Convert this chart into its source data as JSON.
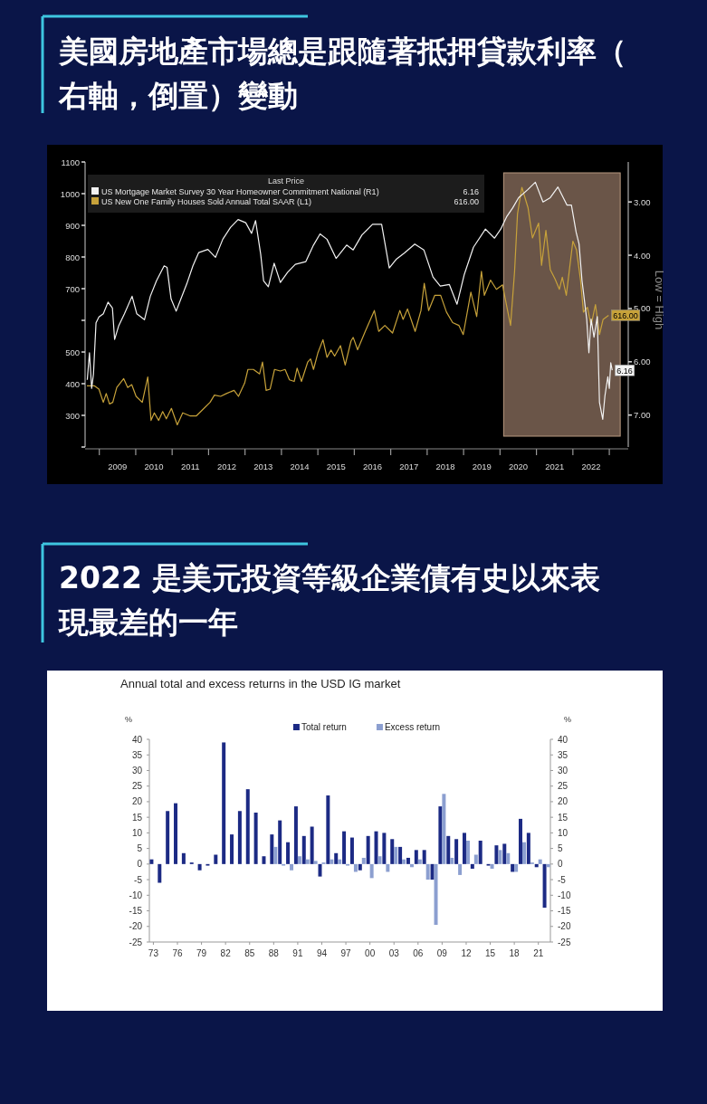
{
  "chart_data": [
    {
      "type": "line",
      "title": "美國房地產市場總是跟隨著抵押貸款利率（右軸，倒置）變動",
      "legend_title": "Last Price",
      "annotations": [
        "6.16",
        "616.00"
      ],
      "y2label": "Low = High",
      "legend": "top left",
      "xlim": [
        2008.61,
        2023.52
      ],
      "xticks": [
        {
          "value": 2009,
          "label": null
        },
        {
          "value": 2009.5,
          "label": "2009"
        },
        {
          "value": 2010,
          "label": null
        },
        {
          "value": 2010.5,
          "label": "2010"
        },
        {
          "value": 2011,
          "label": null
        },
        {
          "value": 2011.5,
          "label": "2011"
        },
        {
          "value": 2012,
          "label": null
        },
        {
          "value": 2012.5,
          "label": "2012"
        },
        {
          "value": 2013,
          "label": null
        },
        {
          "value": 2013.5,
          "label": "2013"
        },
        {
          "value": 2014,
          "label": null
        },
        {
          "value": 2014.5,
          "label": "2014"
        },
        {
          "value": 2015,
          "label": null
        },
        {
          "value": 2015.5,
          "label": "2015"
        },
        {
          "value": 2016,
          "label": null
        },
        {
          "value": 2016.5,
          "label": "2016"
        },
        {
          "value": 2017,
          "label": null
        },
        {
          "value": 2017.5,
          "label": "2017"
        },
        {
          "value": 2018,
          "label": null
        },
        {
          "value": 2018.5,
          "label": "2018"
        },
        {
          "value": 2019,
          "label": null
        },
        {
          "value": 2019.5,
          "label": "2019"
        },
        {
          "value": 2020,
          "label": null
        },
        {
          "value": 2020.5,
          "label": "2020"
        },
        {
          "value": 2021,
          "label": null
        },
        {
          "value": 2021.5,
          "label": "2021"
        },
        {
          "value": 2022,
          "label": null
        },
        {
          "value": 2022.5,
          "label": "2022"
        },
        {
          "value": 2023,
          "label": null
        }
      ],
      "ylim": [
        200,
        1100
      ],
      "yticks": [
        {
          "value": 200,
          "label": null
        },
        300,
        400,
        500,
        {
          "value": 600,
          "label": null
        },
        700,
        800,
        900,
        1000,
        1100
      ],
      "y2lim": [
        7.6,
        2.25
      ],
      "y2ticks": [
        {
          "value": 3,
          "label": "3.00"
        },
        {
          "value": 4,
          "label": "4.00"
        },
        {
          "value": 5,
          "label": "5.00"
        },
        {
          "value": 6,
          "label": "6.00"
        },
        {
          "value": 7,
          "label": "7.00"
        }
      ],
      "bands": [
        {
          "axis": "x",
          "from": 2020.1,
          "to": 2023.3,
          "color": "#6a5548"
        }
      ],
      "series": [
        {
          "name": "US Mortgage Market Survey 30 Year Homeowner Commitment National (R1)",
          "color": "#f2f2f2",
          "axis": "y2",
          "x": [
            2008.67,
            2008.73,
            2008.79,
            2008.84,
            2008.91,
            2008.99,
            2009.11,
            2009.24,
            2009.36,
            2009.42,
            2009.53,
            2009.69,
            2009.9,
            2010.03,
            2010.24,
            2010.4,
            2010.57,
            2010.78,
            2010.86,
            2010.97,
            2011.11,
            2011.24,
            2011.4,
            2011.57,
            2011.73,
            2011.98,
            2012.19,
            2012.39,
            2012.6,
            2012.81,
            2013.02,
            2013.18,
            2013.29,
            2013.43,
            2013.51,
            2013.64,
            2013.8,
            2013.97,
            2014.17,
            2014.38,
            2014.67,
            2014.88,
            2015.06,
            2015.25,
            2015.5,
            2015.79,
            2015.97,
            2016.21,
            2016.5,
            2016.75,
            2016.96,
            2017.16,
            2017.37,
            2017.66,
            2017.91,
            2018.16,
            2018.36,
            2018.61,
            2018.82,
            2019.02,
            2019.27,
            2019.6,
            2019.85,
            2020.02,
            2020.18,
            2020.35,
            2020.51,
            2020.76,
            2020.97,
            2021.18,
            2021.38,
            2021.59,
            2021.84,
            2021.96,
            2022.09,
            2022.17,
            2022.25,
            2022.38,
            2022.44,
            2022.5,
            2022.58,
            2022.67,
            2022.73,
            2022.82,
            2022.88,
            2022.96,
            2023.0,
            2023.04,
            2023.08
          ],
          "values": [
            6.34,
            5.83,
            6.5,
            6.23,
            5.27,
            5.16,
            5.1,
            4.88,
            4.99,
            5.58,
            5.33,
            5.1,
            4.77,
            5.1,
            5.21,
            4.77,
            4.48,
            4.2,
            4.23,
            4.82,
            5.05,
            4.82,
            4.54,
            4.2,
            3.95,
            3.89,
            4.04,
            3.7,
            3.48,
            3.33,
            3.39,
            3.59,
            3.35,
            3.98,
            4.48,
            4.59,
            4.15,
            4.51,
            4.32,
            4.17,
            4.12,
            3.81,
            3.6,
            3.7,
            4.06,
            3.81,
            3.9,
            3.62,
            3.42,
            3.42,
            4.24,
            4.07,
            3.96,
            3.79,
            3.9,
            4.41,
            4.58,
            4.55,
            4.92,
            4.36,
            3.85,
            3.51,
            3.68,
            3.51,
            3.28,
            3.11,
            2.92,
            2.77,
            2.63,
            3.0,
            2.92,
            2.72,
            3.06,
            3.06,
            3.57,
            3.79,
            4.47,
            5.2,
            5.83,
            5.2,
            5.54,
            5.15,
            6.76,
            7.08,
            6.64,
            6.28,
            6.5,
            6.02,
            6.16
          ],
          "value_labels": [
            null,
            null,
            null,
            null,
            null,
            null,
            null,
            null,
            null,
            null,
            null,
            null,
            null,
            null,
            null,
            null,
            null,
            null,
            null,
            null,
            null,
            null,
            null,
            null,
            null,
            null,
            null,
            null,
            null,
            null,
            null,
            null,
            null,
            null,
            null,
            null,
            null,
            null,
            null,
            null,
            null,
            null,
            null,
            null,
            null,
            null,
            null,
            null,
            null,
            null,
            null,
            null,
            null,
            null,
            null,
            null,
            null,
            null,
            null,
            null,
            null,
            null,
            null,
            null,
            null,
            null,
            null,
            null,
            null,
            null,
            null,
            null,
            null,
            null,
            null,
            null,
            null,
            null,
            null,
            null,
            null,
            null,
            null,
            null,
            null,
            null,
            null,
            null,
            "6.16"
          ]
        },
        {
          "name": "US New One Family Houses Sold Annual Total SAAR  (L1)",
          "color": "#c7a23a",
          "x": [
            2008.66,
            2008.87,
            2008.99,
            2009.11,
            2009.19,
            2009.28,
            2009.37,
            2009.48,
            2009.67,
            2009.78,
            2009.89,
            2010.01,
            2010.18,
            2010.33,
            2010.42,
            2010.51,
            2010.63,
            2010.74,
            2010.84,
            2010.98,
            2011.14,
            2011.29,
            2011.5,
            2011.66,
            2011.83,
            2012.04,
            2012.16,
            2012.33,
            2012.49,
            2012.7,
            2012.82,
            2012.99,
            2013.08,
            2013.23,
            2013.4,
            2013.48,
            2013.58,
            2013.69,
            2013.81,
            2013.97,
            2014.1,
            2014.22,
            2014.35,
            2014.43,
            2014.55,
            2014.72,
            2014.8,
            2014.88,
            2015.0,
            2015.14,
            2015.25,
            2015.36,
            2015.46,
            2015.62,
            2015.75,
            2015.91,
            2015.97,
            2016.09,
            2016.3,
            2016.55,
            2016.67,
            2016.84,
            2017.05,
            2017.25,
            2017.34,
            2017.46,
            2017.67,
            2017.83,
            2017.92,
            2018.04,
            2018.21,
            2018.37,
            2018.53,
            2018.7,
            2018.87,
            2018.99,
            2019.2,
            2019.36,
            2019.49,
            2019.57,
            2019.74,
            2019.9,
            2020.07,
            2020.19,
            2020.29,
            2020.4,
            2020.48,
            2020.6,
            2020.77,
            2020.89,
            2021.06,
            2021.14,
            2021.26,
            2021.38,
            2021.51,
            2021.63,
            2021.71,
            2021.82,
            2022.0,
            2022.1,
            2022.21,
            2022.29,
            2022.4,
            2022.5,
            2022.62,
            2022.73,
            2022.83,
            2022.98
          ],
          "values": [
            393,
            393,
            383,
            341,
            369,
            336,
            341,
            388,
            416,
            388,
            397,
            360,
            341,
            421,
            284,
            308,
            284,
            312,
            289,
            322,
            270,
            308,
            298,
            298,
            317,
            341,
            364,
            360,
            369,
            379,
            360,
            402,
            445,
            445,
            431,
            468,
            379,
            383,
            445,
            440,
            445,
            412,
            407,
            449,
            407,
            468,
            478,
            445,
            497,
            539,
            483,
            506,
            487,
            520,
            459,
            535,
            546,
            507,
            565,
            631,
            565,
            584,
            560,
            631,
            603,
            636,
            565,
            631,
            717,
            631,
            679,
            679,
            626,
            593,
            584,
            555,
            689,
            612,
            755,
            679,
            727,
            698,
            712,
            641,
            584,
            755,
            936,
            1020,
            955,
            860,
            907,
            774,
            884,
            760,
            731,
            698,
            736,
            679,
            850,
            822,
            727,
            626,
            641,
            584,
            650,
            555,
            603,
            616
          ],
          "value_labels": [
            null,
            null,
            null,
            null,
            null,
            null,
            null,
            null,
            null,
            null,
            null,
            null,
            null,
            null,
            null,
            null,
            null,
            null,
            null,
            null,
            null,
            null,
            null,
            null,
            null,
            null,
            null,
            null,
            null,
            null,
            null,
            null,
            null,
            null,
            null,
            null,
            null,
            null,
            null,
            null,
            null,
            null,
            null,
            null,
            null,
            null,
            null,
            null,
            null,
            null,
            null,
            null,
            null,
            null,
            null,
            null,
            null,
            null,
            null,
            null,
            null,
            null,
            null,
            null,
            null,
            null,
            null,
            null,
            null,
            null,
            null,
            null,
            null,
            null,
            null,
            null,
            null,
            null,
            null,
            null,
            null,
            null,
            null,
            null,
            null,
            null,
            null,
            null,
            null,
            null,
            null,
            null,
            null,
            null,
            null,
            null,
            null,
            null,
            null,
            null,
            null,
            null,
            null,
            null,
            null,
            null,
            null,
            "616.00"
          ]
        }
      ]
    },
    {
      "type": "bar",
      "title": "2022 是美元投資等級企業債有史以來表現最差的一年",
      "subtitle": "Annual total and excess returns in the USD IG market",
      "ylabel": "%",
      "y2label": "%",
      "legend": "top",
      "categories": [
        "73",
        null,
        null,
        "76",
        null,
        null,
        "79",
        null,
        null,
        "82",
        null,
        null,
        "85",
        null,
        null,
        "88",
        null,
        null,
        "91",
        null,
        null,
        "94",
        null,
        null,
        "97",
        null,
        null,
        "00",
        null,
        null,
        "03",
        null,
        null,
        "06",
        null,
        null,
        "09",
        null,
        null,
        "12",
        null,
        null,
        "15",
        null,
        null,
        "18",
        null,
        null,
        "21",
        null
      ],
      "ylim": [
        -25,
        40
      ],
      "yticks": [
        -25,
        -20,
        -15,
        -10,
        -5,
        0,
        5,
        10,
        15,
        20,
        25,
        30,
        35,
        40
      ],
      "y2lim": [
        -25,
        40
      ],
      "y2ticks": [
        -25,
        -20,
        -15,
        -10,
        -5,
        0,
        5,
        10,
        15,
        20,
        25,
        30,
        35,
        40
      ],
      "series": [
        {
          "name": "Total return",
          "color": "#1c2a84",
          "values": [
            1.5,
            -6,
            17,
            19.5,
            3.5,
            0.5,
            -2,
            -0.5,
            3,
            39,
            9.5,
            17,
            24,
            16.5,
            2.5,
            9.5,
            14,
            7,
            18.5,
            9,
            12,
            -4,
            22,
            3.5,
            10.5,
            8.5,
            -2,
            9,
            10.5,
            10,
            8,
            5.5,
            2,
            4.5,
            4.5,
            -5,
            18.5,
            9,
            8,
            10,
            -1.5,
            7.5,
            -0.5,
            6,
            6.5,
            -2.5,
            14.5,
            10,
            -1,
            -14
          ]
        },
        {
          "name": "Excess return",
          "color": "#8c9fd0",
          "values": [
            null,
            null,
            null,
            null,
            null,
            null,
            null,
            null,
            null,
            null,
            null,
            null,
            null,
            null,
            null,
            5.5,
            -0.5,
            -2,
            2.5,
            1.5,
            1,
            0.5,
            1.5,
            1.5,
            -0.5,
            -2.5,
            2,
            -4.5,
            2.5,
            -2.5,
            5.5,
            1.5,
            -1,
            1.5,
            -5,
            -19.5,
            22.5,
            2,
            -3.5,
            7.5,
            3,
            0,
            -1.5,
            4.5,
            3.5,
            -2.5,
            7,
            0.5,
            1.5,
            -1
          ]
        }
      ]
    }
  ]
}
